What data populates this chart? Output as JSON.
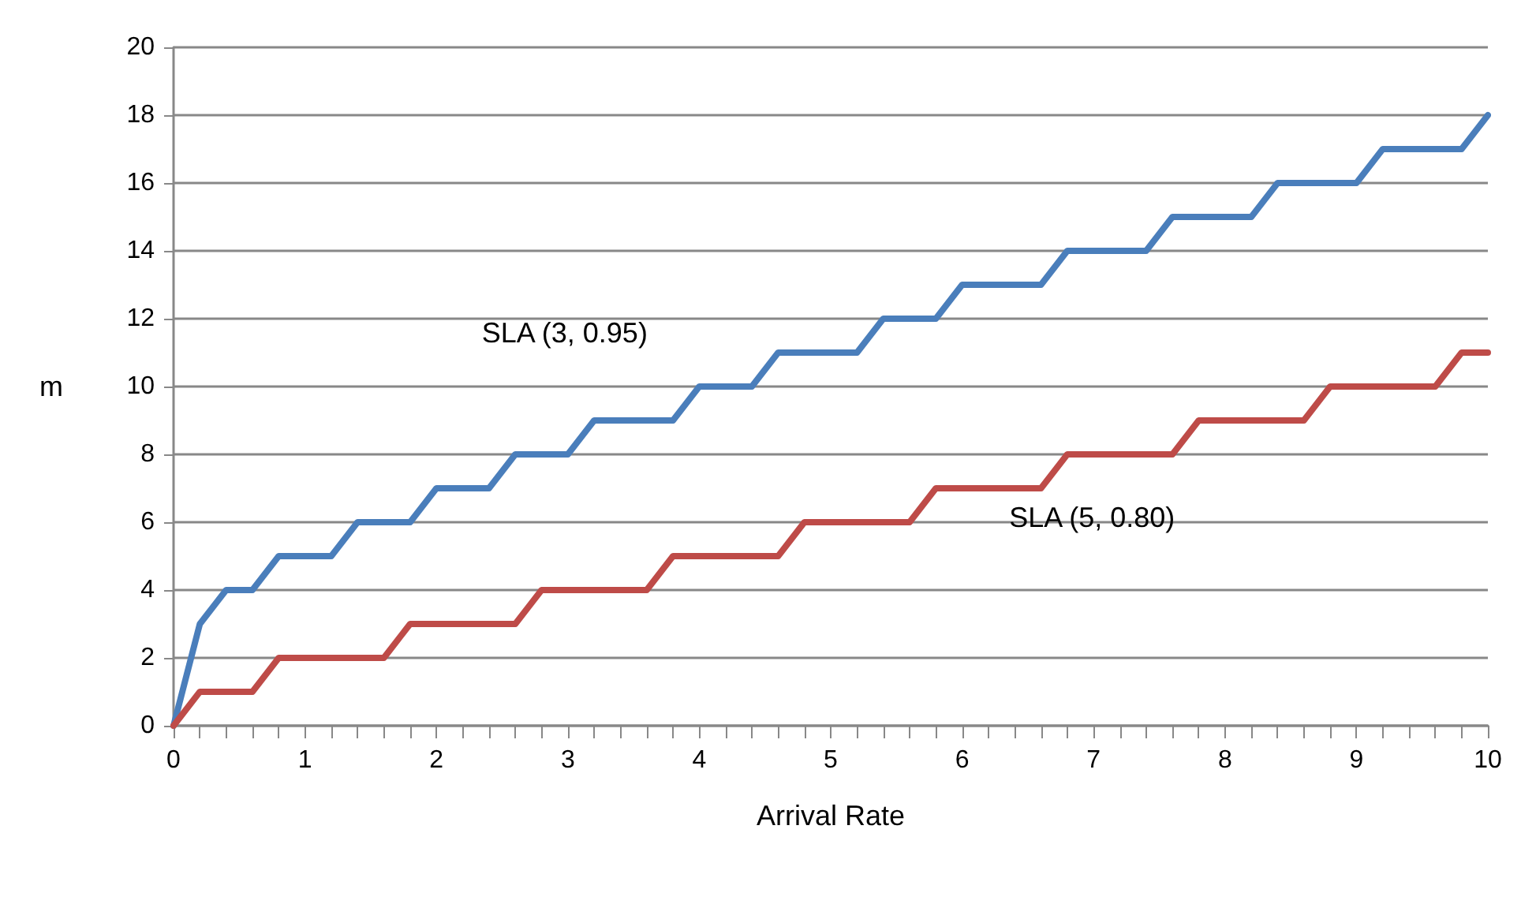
{
  "chart_data": {
    "type": "line",
    "xlabel": "Arrival Rate",
    "ylabel": "m",
    "x": [
      0,
      0.2,
      0.4,
      0.6,
      0.8,
      1,
      1.2,
      1.4,
      1.6,
      1.8,
      2,
      2.2,
      2.4,
      2.6,
      2.8,
      3,
      3.2,
      3.4,
      3.6,
      3.8,
      4,
      4.2,
      4.4,
      4.6,
      4.8,
      5,
      5.2,
      5.4,
      5.6,
      5.8,
      6,
      6.2,
      6.4,
      6.6,
      6.8,
      7,
      7.2,
      7.4,
      7.6,
      7.8,
      8,
      8.2,
      8.4,
      8.6,
      8.8,
      9,
      9.2,
      9.4,
      9.6,
      9.8,
      10
    ],
    "series": [
      {
        "name": "SLA (3, 0.95)",
        "color": "#4a7ebb",
        "values": [
          0,
          3,
          4,
          4,
          5,
          5,
          5,
          6,
          6,
          6,
          7,
          7,
          7,
          8,
          8,
          8,
          9,
          9,
          9,
          9,
          10,
          10,
          10,
          11,
          11,
          11,
          11,
          12,
          12,
          12,
          13,
          13,
          13,
          13,
          14,
          14,
          14,
          14,
          15,
          15,
          15,
          15,
          16,
          16,
          16,
          16,
          17,
          17,
          17,
          17,
          18
        ]
      },
      {
        "name": "SLA (5, 0.80)",
        "color": "#be4b48",
        "values": [
          0,
          1,
          1,
          1,
          2,
          2,
          2,
          2,
          2,
          3,
          3,
          3,
          3,
          3,
          4,
          4,
          4,
          4,
          4,
          5,
          5,
          5,
          5,
          5,
          6,
          6,
          6,
          6,
          6,
          7,
          7,
          7,
          7,
          7,
          8,
          8,
          8,
          8,
          8,
          9,
          9,
          9,
          9,
          9,
          10,
          10,
          10,
          10,
          10,
          11,
          11
        ]
      }
    ],
    "xlim": [
      0,
      10
    ],
    "xticks": [
      0,
      {
        "value": 0.2,
        "label": null
      },
      {
        "value": 0.4,
        "label": null
      },
      {
        "value": 0.6,
        "label": null
      },
      {
        "value": 0.8,
        "label": null
      },
      1,
      {
        "value": 1.2,
        "label": null
      },
      {
        "value": 1.4,
        "label": null
      },
      {
        "value": 1.6,
        "label": null
      },
      {
        "value": 1.8,
        "label": null
      },
      2,
      {
        "value": 2.2,
        "label": null
      },
      {
        "value": 2.4,
        "label": null
      },
      {
        "value": 2.6,
        "label": null
      },
      {
        "value": 2.8,
        "label": null
      },
      3,
      {
        "value": 3.2,
        "label": null
      },
      {
        "value": 3.4,
        "label": null
      },
      {
        "value": 3.6,
        "label": null
      },
      {
        "value": 3.8,
        "label": null
      },
      4,
      {
        "value": 4.2,
        "label": null
      },
      {
        "value": 4.4,
        "label": null
      },
      {
        "value": 4.6,
        "label": null
      },
      {
        "value": 4.8,
        "label": null
      },
      5,
      {
        "value": 5.2,
        "label": null
      },
      {
        "value": 5.4,
        "label": null
      },
      {
        "value": 5.6,
        "label": null
      },
      {
        "value": 5.8,
        "label": null
      },
      6,
      {
        "value": 6.2,
        "label": null
      },
      {
        "value": 6.4,
        "label": null
      },
      {
        "value": 6.6,
        "label": null
      },
      {
        "value": 6.8,
        "label": null
      },
      7,
      {
        "value": 7.2,
        "label": null
      },
      {
        "value": 7.4,
        "label": null
      },
      {
        "value": 7.6,
        "label": null
      },
      {
        "value": 7.8,
        "label": null
      },
      8,
      {
        "value": 8.2,
        "label": null
      },
      {
        "value": 8.4,
        "label": null
      },
      {
        "value": 8.6,
        "label": null
      },
      {
        "value": 8.8,
        "label": null
      },
      9,
      {
        "value": 9.2,
        "label": null
      },
      {
        "value": 9.4,
        "label": null
      },
      {
        "value": 9.6,
        "label": null
      },
      {
        "value": 9.8,
        "label": null
      },
      10
    ],
    "ylim": [
      0,
      20
    ],
    "yticks": [
      0,
      2,
      4,
      6,
      8,
      10,
      12,
      14,
      16,
      18,
      20
    ],
    "grid": "y",
    "marker": "none",
    "line_style": "solid"
  }
}
